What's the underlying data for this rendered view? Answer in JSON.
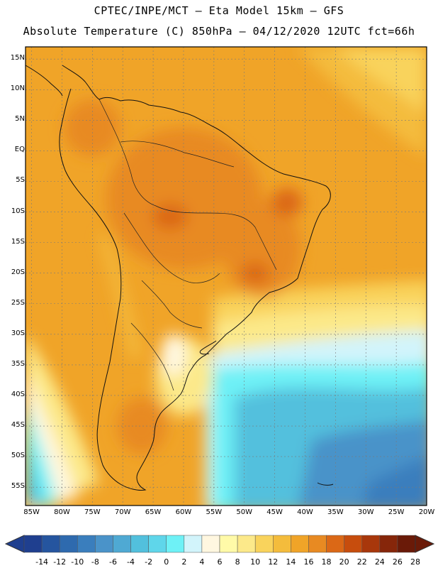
{
  "header": {
    "line1": "CPTEC/INPE/MCT –  Eta Model 15km – GFS",
    "line2": "Absolute Temperature (C) 850hPa – 04/12/2020 12UTC fct=66h"
  },
  "map": {
    "lat_range": [
      -58,
      17
    ],
    "lon_range": [
      -86,
      -20
    ],
    "lat_labels": [
      "15N",
      "10N",
      "5N",
      "EQ",
      "5S",
      "10S",
      "15S",
      "20S",
      "25S",
      "30S",
      "35S",
      "40S",
      "45S",
      "50S",
      "55S"
    ],
    "lon_labels": [
      "85W",
      "80W",
      "75W",
      "70W",
      "65W",
      "60W",
      "55W",
      "50W",
      "45W",
      "40W",
      "35W",
      "30W",
      "25W",
      "20W"
    ]
  },
  "colorbar": {
    "labels": [
      "-14",
      "-12",
      "-10",
      "-8",
      "-6",
      "-4",
      "-2",
      "0",
      "2",
      "4",
      "6",
      "8",
      "10",
      "12",
      "14",
      "16",
      "18",
      "20",
      "22",
      "24",
      "26",
      "28"
    ],
    "colors": [
      "#1f3f8f",
      "#25559f",
      "#2e6aae",
      "#3a7ebd",
      "#4a93c9",
      "#4fa9d3",
      "#52c0dd",
      "#5fd6ea",
      "#6ef1f6",
      "#d2f4fb",
      "#fff7e0",
      "#fffaa8",
      "#fce98a",
      "#f9d35c",
      "#f4bc3c",
      "#f0a428",
      "#e88a22",
      "#db6816",
      "#c74d0d",
      "#a8370b",
      "#86260a",
      "#6a1a08"
    ]
  }
}
